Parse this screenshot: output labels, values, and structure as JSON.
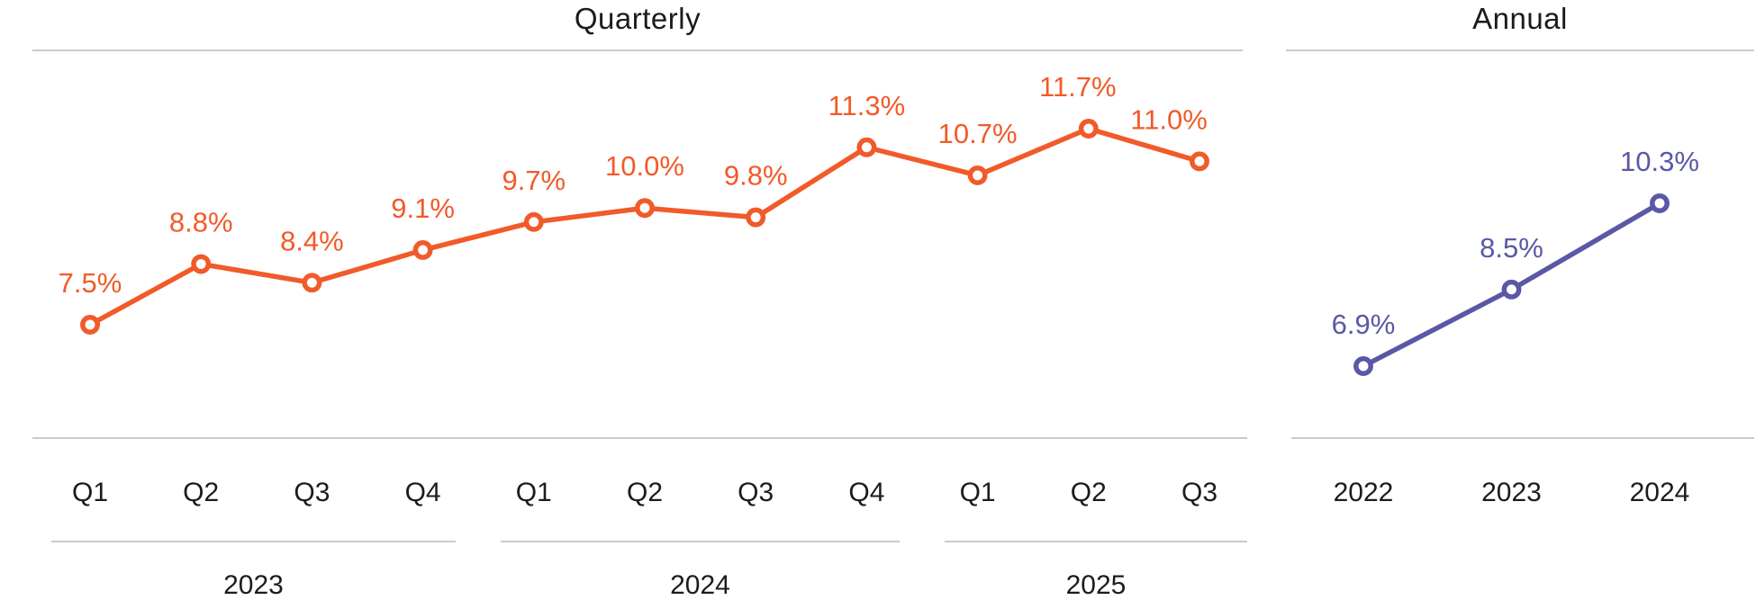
{
  "page": {
    "background_color": "#ffffff",
    "rule_color": "#cbcbcb",
    "text_color": "#1c1c1c"
  },
  "chart_data": [
    {
      "type": "line",
      "title": "Quarterly",
      "color": "#F15A29",
      "categories": [
        "Q1",
        "Q2",
        "Q3",
        "Q4",
        "Q1",
        "Q2",
        "Q3",
        "Q4",
        "Q1",
        "Q2",
        "Q3"
      ],
      "category_groups": [
        {
          "label": "2023",
          "from": 0,
          "to": 3
        },
        {
          "label": "2024",
          "from": 4,
          "to": 7
        },
        {
          "label": "2025",
          "from": 8,
          "to": 10
        }
      ],
      "values": [
        7.5,
        8.8,
        8.4,
        9.1,
        9.7,
        10.0,
        9.8,
        11.3,
        10.7,
        11.7,
        11.0
      ],
      "value_labels": [
        "7.5%",
        "8.8%",
        "8.4%",
        "9.1%",
        "9.7%",
        "10.0%",
        "9.8%",
        "11.3%",
        "10.7%",
        "11.7%",
        "11.0%"
      ],
      "unit": "%",
      "ylim": [
        5.1,
        13.4
      ],
      "grid": false,
      "legend": "none",
      "markers": "open-circle",
      "data_label_position": "above-points"
    },
    {
      "type": "line",
      "title": "Annual",
      "color": "#5A58A6",
      "categories": [
        "2022",
        "2023",
        "2024"
      ],
      "values": [
        6.9,
        8.5,
        10.3
      ],
      "value_labels": [
        "6.9%",
        "8.5%",
        "10.3%"
      ],
      "unit": "%",
      "ylim": [
        5.4,
        13.5
      ],
      "grid": false,
      "legend": "none",
      "markers": "open-circle",
      "data_label_position": "above-points"
    }
  ]
}
